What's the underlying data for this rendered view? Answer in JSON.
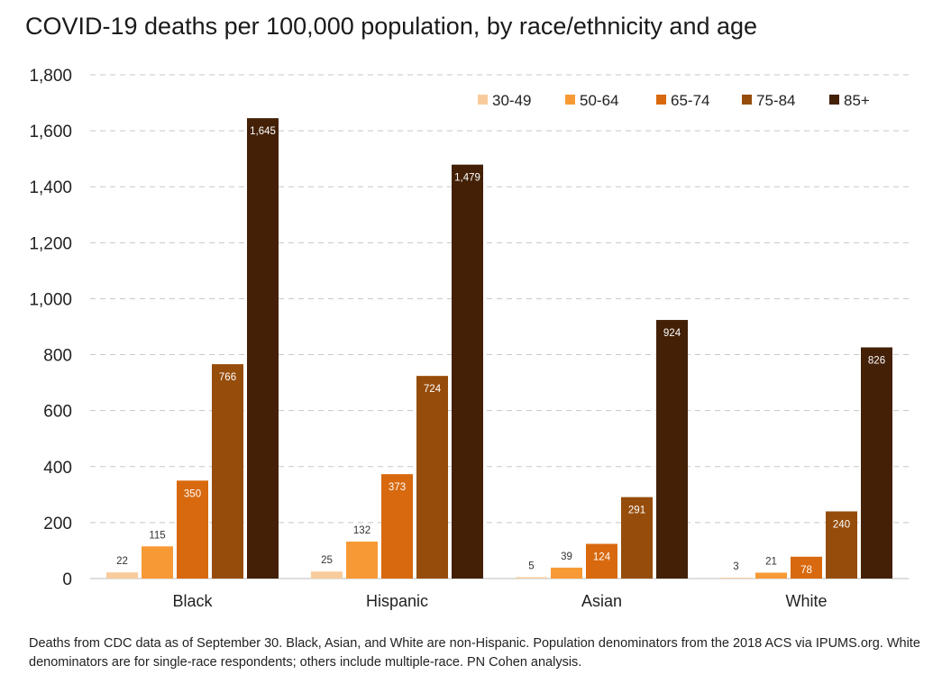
{
  "chart_data": {
    "type": "bar",
    "title": "COVID-19 deaths per 100,000 population, by race/ethnicity and age",
    "xlabel": "",
    "ylabel": "",
    "ylim": [
      0,
      1800
    ],
    "yticks": [
      0,
      200,
      400,
      600,
      800,
      1000,
      1200,
      1400,
      1600,
      1800
    ],
    "ytick_labels": [
      "0",
      "200",
      "400",
      "600",
      "800",
      "1,000",
      "1,200",
      "1,400",
      "1,600",
      "1,800"
    ],
    "grid": true,
    "legend_position": "top-right",
    "categories": [
      "Black",
      "Hispanic",
      "Asian",
      "White"
    ],
    "series": [
      {
        "name": "30-49",
        "color": "#f8cb9c",
        "values": [
          22,
          25,
          5,
          3
        ],
        "labels": [
          "22",
          "25",
          "5",
          "3"
        ]
      },
      {
        "name": "50-64",
        "color": "#f79a35",
        "values": [
          115,
          132,
          39,
          21
        ],
        "labels": [
          "115",
          "132",
          "39",
          "21"
        ]
      },
      {
        "name": "65-74",
        "color": "#d8690e",
        "values": [
          350,
          373,
          124,
          78
        ],
        "labels": [
          "350",
          "373",
          "124",
          "78"
        ]
      },
      {
        "name": "75-84",
        "color": "#964c0b",
        "values": [
          766,
          724,
          291,
          240
        ],
        "labels": [
          "766",
          "724",
          "291",
          "240"
        ]
      },
      {
        "name": "85+",
        "color": "#432006",
        "values": [
          1645,
          1479,
          924,
          826
        ],
        "labels": [
          "1,645",
          "1,479",
          "924",
          "826"
        ]
      }
    ]
  },
  "footnote": "Deaths from CDC data as of September 30. Black, Asian, and White are non-Hispanic. Population denominators from the 2018 ACS via IPUMS.org. White denominators are for single-race respondents; others include multiple-race. PN Cohen analysis."
}
